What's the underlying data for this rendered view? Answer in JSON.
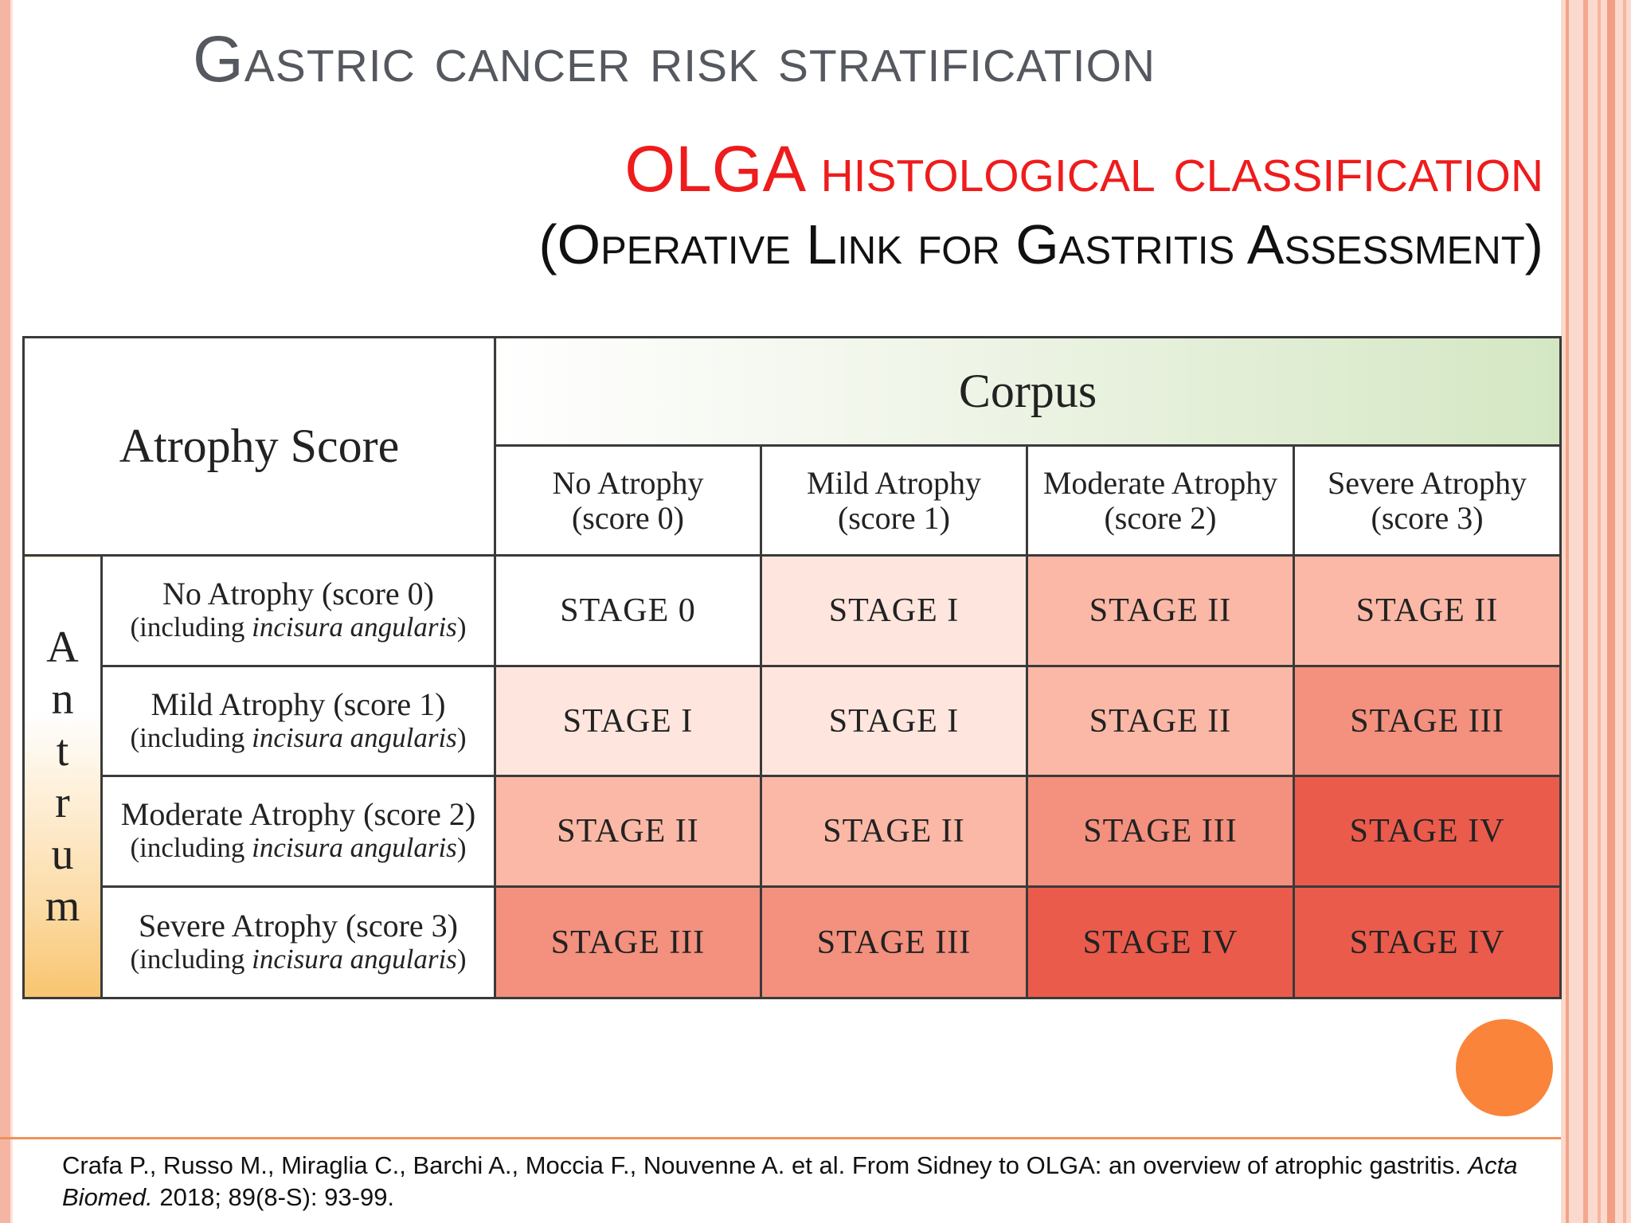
{
  "title": "Gastric cancer risk stratification",
  "subtitle": {
    "line1_acronym": "OLGA",
    "line1_rest": "histological classification",
    "line2": "(Operative Link for Gastritis Assessment)"
  },
  "table": {
    "corner_label": "Atrophy Score",
    "corpus_label": "Corpus",
    "antrum_letters": [
      "A",
      "n",
      "t",
      "r",
      "u",
      "m"
    ],
    "columns": [
      {
        "name": "No Atrophy",
        "score": "(score 0)"
      },
      {
        "name": "Mild Atrophy",
        "score": "(score 1)"
      },
      {
        "name": "Moderate Atrophy",
        "score": "(score 2)"
      },
      {
        "name": "Severe Atrophy",
        "score": "(score 3)"
      }
    ],
    "rows": [
      {
        "label": "No Atrophy (score 0)",
        "sub_prefix": "(including ",
        "sub_italic": "incisura angularis",
        "sub_suffix": ")",
        "stages": [
          "STAGE 0",
          "STAGE I",
          "STAGE II",
          "STAGE II"
        ]
      },
      {
        "label": "Mild Atrophy (score 1)",
        "sub_prefix": "(including ",
        "sub_italic": "incisura angularis",
        "sub_suffix": ")",
        "stages": [
          "STAGE I",
          "STAGE I",
          "STAGE II",
          "STAGE III"
        ]
      },
      {
        "label": "Moderate Atrophy (score 2)",
        "sub_prefix": "(including ",
        "sub_italic": "incisura angularis",
        "sub_suffix": ")",
        "stages": [
          "STAGE II",
          "STAGE II",
          "STAGE III",
          "STAGE IV"
        ]
      },
      {
        "label": "Severe Atrophy (score 3)",
        "sub_prefix": "(including ",
        "sub_italic": "incisura angularis",
        "sub_suffix": ")",
        "stages": [
          "STAGE III",
          "STAGE III",
          "STAGE IV",
          "STAGE IV"
        ]
      }
    ]
  },
  "reference": {
    "authors_title": "Crafa P., Russo M., Miraglia C., Barchi A., Moccia F., Nouvenne A. et al. From Sidney to OLGA: an overview of atrophic gastritis.",
    "journal": "Acta Biomed.",
    "details": "2018; 89(8-S): 93-99."
  },
  "colors": {
    "title_gray": "#55585f",
    "subtitle_red": "#ee1c1c",
    "accent_orange": "#f9843a",
    "stripe_salmon": "#f5b5a3",
    "corpus_green": "#d4e7c3",
    "antrum_yellow": "#f8c56f",
    "stage_0": "#ffffff",
    "stage_1": "#fee6de",
    "stage_2": "#fbb8a6",
    "stage_3": "#f3907e",
    "stage_4": "#ea5b4c"
  }
}
